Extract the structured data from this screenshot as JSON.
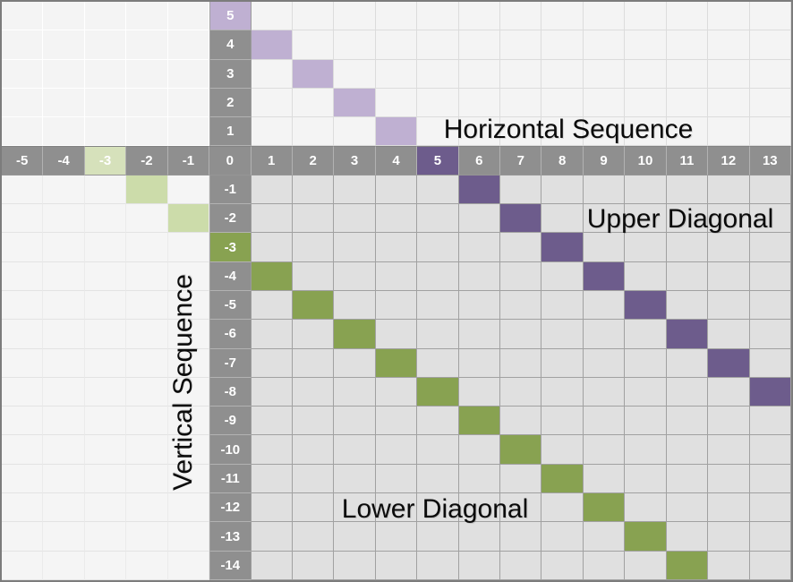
{
  "labels": {
    "horizontal": "Horizontal Sequence",
    "vertical": "Vertical Sequence",
    "upper_diagonal": "Upper Diagonal",
    "lower_diagonal": "Lower Diagonal"
  },
  "grid": {
    "columns": [
      "-5",
      "-4",
      "-3",
      "-2",
      "-1",
      "0",
      "1",
      "2",
      "3",
      "4",
      "5",
      "6",
      "7",
      "8",
      "9",
      "10",
      "11",
      "12",
      "13"
    ],
    "rows": [
      "5",
      "4",
      "3",
      "2",
      "1",
      "0",
      "-1",
      "-2",
      "-3",
      "-4",
      "-5",
      "-6",
      "-7",
      "-8",
      "-9",
      "-10",
      "-11",
      "-12",
      "-13",
      "-14"
    ],
    "corner": "0"
  },
  "highlights": {
    "row_header": {
      "5": "light_purple",
      "-3": "green"
    },
    "col_header": {
      "5": "dark_purple",
      "-3": "light_green_header"
    },
    "upper_band_light": [
      [
        4,
        1
      ],
      [
        3,
        2
      ],
      [
        2,
        3
      ],
      [
        1,
        4
      ]
    ],
    "upper_band_dark": [
      [
        -1,
        6
      ],
      [
        -2,
        7
      ],
      [
        -3,
        8
      ],
      [
        -4,
        9
      ],
      [
        -5,
        10
      ],
      [
        -6,
        11
      ],
      [
        -7,
        12
      ],
      [
        -8,
        13
      ]
    ],
    "lower_band_light": [
      [
        -1,
        -2
      ],
      [
        -2,
        -1
      ]
    ],
    "lower_band_dark": [
      [
        -4,
        1
      ],
      [
        -5,
        2
      ],
      [
        -6,
        3
      ],
      [
        -7,
        4
      ],
      [
        -8,
        5
      ],
      [
        -9,
        6
      ],
      [
        -10,
        7
      ],
      [
        -11,
        8
      ],
      [
        -12,
        9
      ],
      [
        -13,
        10
      ],
      [
        -14,
        11
      ]
    ]
  },
  "colors": {
    "header_gray": "#8f8f8f",
    "header_text": "#ffffff",
    "cell_gray": "#e0e0e0",
    "pale_bg": "#f4f4f4",
    "pale_bg2": "#f5f5f5",
    "light_purple": "#bfb0d2",
    "dark_purple": "#6d5c8c",
    "light_green": "#ccdcaa",
    "light_green_header": "#d6e1bb",
    "green": "#88a251",
    "label_text": "#0b0b0b"
  }
}
